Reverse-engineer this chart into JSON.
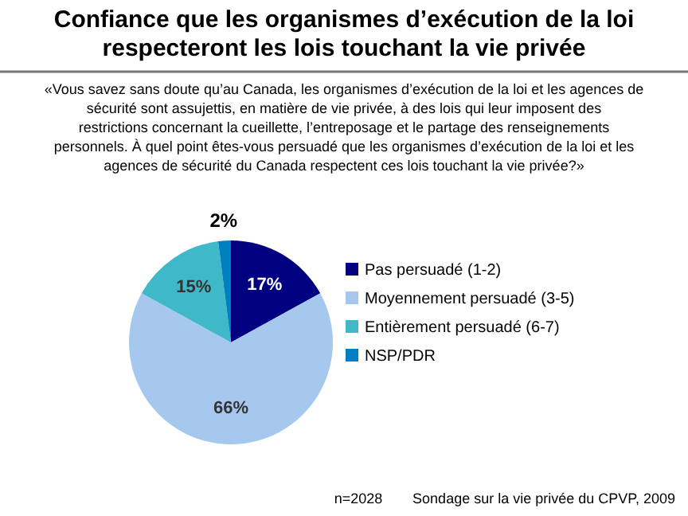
{
  "chart_data": {
    "type": "pie",
    "title": "Confiance que les organismes d’exécution de la loi respecteront les lois touchant la vie privée",
    "subtitle": "«Vous savez sans doute qu’au Canada, les organismes d’exécution de la loi et les agences de sécurité sont assujettis, en matière de vie privée, à des lois qui leur imposent des restrictions concernant la cueillette, l’entreposage et le partage des renseignements personnels. À quel point êtes-vous persuadé que les organismes d’exécution de la loi et les agences de sécurité du Canada respectent ces lois touchant la vie privée?»",
    "categories": [
      "Pas persuadé (1-2)",
      "Moyennement persuadé (3-5)",
      "Entièrement persuadé (6-7)",
      "NSP/PDR"
    ],
    "values": [
      17,
      66,
      15,
      2
    ],
    "colors": [
      "#000080",
      "#a6c8ef",
      "#3fb8c9",
      "#0080c0"
    ],
    "value_labels": [
      "17%",
      "66%",
      "15%",
      "2%"
    ],
    "legend": "right",
    "annotations": [
      "n=2028",
      "Sondage sur la vie privée du CPVP, 2009"
    ]
  }
}
